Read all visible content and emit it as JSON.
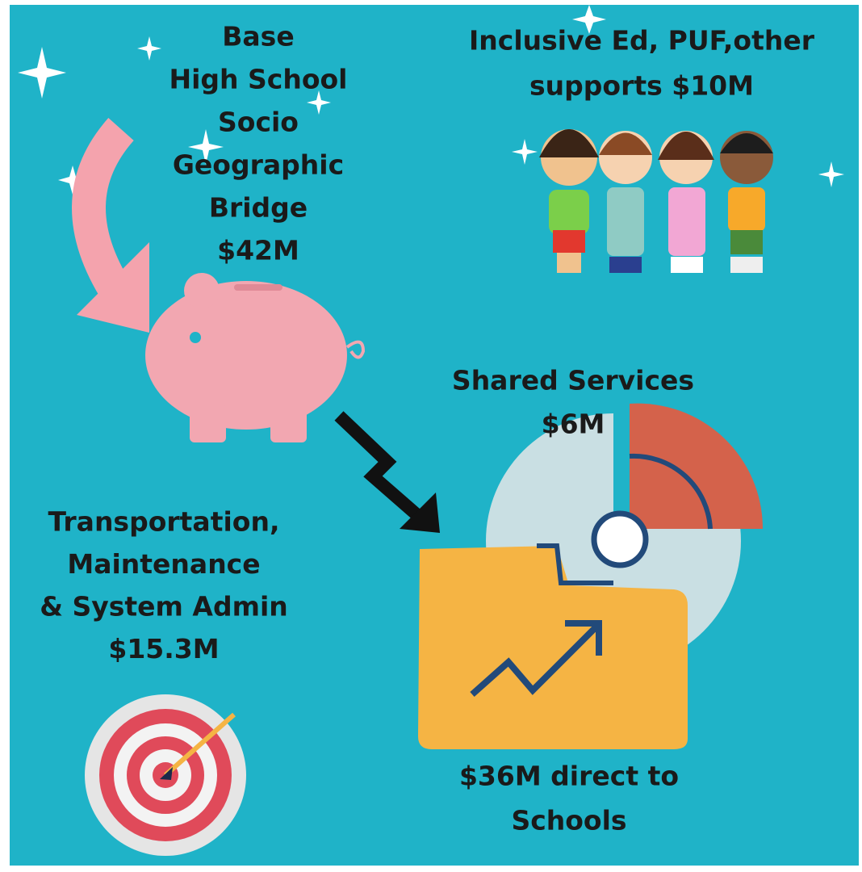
{
  "blocks": [
    {
      "lines": [
        "Base",
        "High School",
        "Socio",
        "Geographic",
        "Bridge",
        "$42M"
      ]
    },
    {
      "lines": [
        "Inclusive Ed, PUF,other",
        "supports $10M"
      ]
    },
    {
      "lines": [
        "Shared Services",
        "$6M"
      ]
    },
    {
      "lines": [
        "Transportation,",
        "Maintenance",
        "& System Admin",
        "$15.3M"
      ]
    },
    {
      "lines": [
        "$36M direct to",
        "Schools"
      ]
    }
  ]
}
